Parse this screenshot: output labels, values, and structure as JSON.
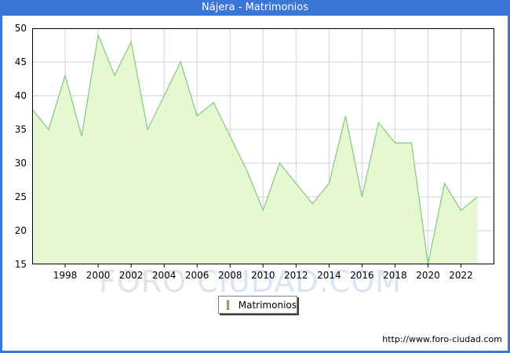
{
  "window": {
    "title": "Nájera - Matrimonios"
  },
  "colors": {
    "frame_blue": "#3A76D8",
    "area_fill": "#E6F8D0",
    "line_green": "#8CC98C",
    "legend_swatch": "#B4EF7D",
    "gridline": "#D2D2D2",
    "plot_border": "#000000",
    "watermark_gray": "#E4E4E4",
    "watermark_blue": "#DBE5F1"
  },
  "chart_data": {
    "type": "area",
    "title": "Nájera - Matrimonios",
    "series_name": "Matrimonios",
    "x": [
      1996,
      1997,
      1998,
      1999,
      2000,
      2001,
      2002,
      2003,
      2004,
      2005,
      2006,
      2007,
      2008,
      2009,
      2010,
      2011,
      2012,
      2013,
      2014,
      2015,
      2016,
      2017,
      2018,
      2019,
      2020,
      2021,
      2022,
      2023
    ],
    "values": [
      38,
      35,
      43,
      34,
      49,
      43,
      48,
      35,
      40,
      45,
      37,
      39,
      34,
      29,
      23,
      30,
      27,
      24,
      27,
      37,
      25,
      36,
      33,
      33,
      15,
      27,
      23,
      25
    ],
    "ylim": [
      15,
      50
    ],
    "y_ticks": [
      15,
      20,
      25,
      30,
      35,
      40,
      45,
      50
    ],
    "x_tick_years": [
      1998,
      2000,
      2002,
      2004,
      2006,
      2008,
      2010,
      2012,
      2014,
      2016,
      2018,
      2020,
      2022
    ],
    "grid": true,
    "legend_position": "bottom-center",
    "xlabel": "",
    "ylabel": ""
  },
  "legend": {
    "label": "Matrimonios"
  },
  "watermark": {
    "part1": "FORO",
    "part2": " CIUDAD.COM"
  },
  "footer": {
    "url": "http://www.foro-ciudad.com"
  }
}
